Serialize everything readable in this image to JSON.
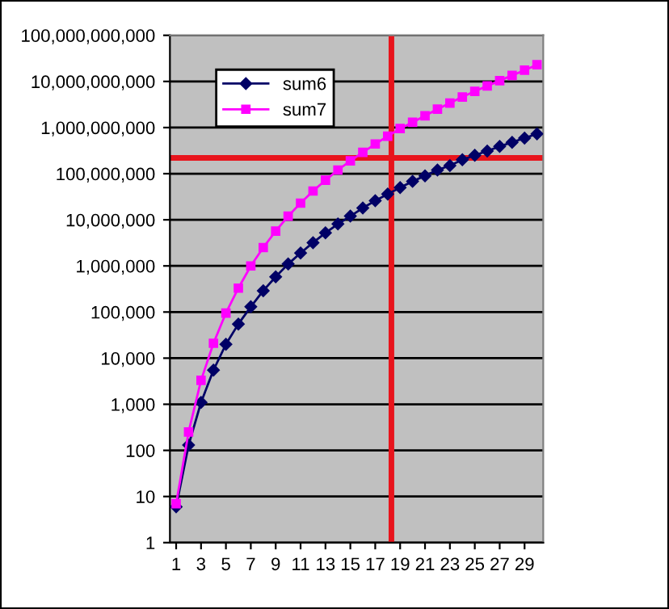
{
  "chart_data": {
    "type": "line",
    "x": [
      1,
      2,
      3,
      4,
      5,
      6,
      7,
      8,
      9,
      10,
      11,
      12,
      13,
      14,
      15,
      16,
      17,
      18,
      19,
      20,
      21,
      22,
      23,
      24,
      25,
      26,
      27,
      28,
      29,
      30
    ],
    "series": [
      {
        "name": "sum6",
        "color": "#000066",
        "marker": "diamond",
        "values": [
          6,
          130,
          1100,
          5500,
          20000,
          55000,
          130000,
          290000,
          580000,
          1100000,
          1900000,
          3200000,
          5200000,
          8100000,
          12000000,
          18000000,
          26000000,
          36000000,
          50000000,
          68000000,
          90000000,
          120000000,
          150000000,
          200000000,
          250000000,
          310000000,
          390000000,
          480000000,
          590000000,
          730000000
        ]
      },
      {
        "name": "sum7",
        "color": "#ff00ff",
        "marker": "square",
        "values": [
          7,
          250,
          3300,
          21000,
          95000,
          330000,
          1000000,
          2500000,
          5700000,
          12000000,
          23000000,
          42000000,
          72000000,
          120000000,
          190000000,
          290000000,
          440000000,
          650000000,
          950000000,
          1300000000,
          1800000000,
          2500000000,
          3400000000,
          4600000000,
          6100000000,
          8000000000,
          10400000000,
          13500000000,
          17500000000,
          23000000000
        ]
      }
    ],
    "log": "y",
    "xlim": [
      0.5,
      30.5
    ],
    "xticks": [
      1,
      3,
      5,
      7,
      9,
      11,
      13,
      15,
      17,
      19,
      21,
      23,
      25,
      27,
      29
    ],
    "ylim": [
      1,
      100000000000
    ],
    "yticks": [
      1,
      10,
      100,
      {
        "value": 1000,
        "label": "1,000"
      },
      {
        "value": 10000,
        "label": "10,000"
      },
      {
        "value": 100000,
        "label": "100,000"
      },
      {
        "value": 1000000,
        "label": "1,000,000"
      },
      {
        "value": 10000000,
        "label": "10,000,000"
      },
      {
        "value": 100000000,
        "label": "100,000,000"
      },
      {
        "value": 1000000000,
        "label": "1,000,000,000"
      },
      {
        "value": 10000000000,
        "label": "10,000,000,000"
      },
      {
        "value": 100000000000,
        "label": "100,000,000,000"
      }
    ],
    "grid": "y",
    "legend": "top left",
    "line_style": "solid",
    "ref_lines": [
      {
        "axis": "x",
        "value": 18.3,
        "label": null,
        "color": "#e8141c"
      },
      {
        "axis": "y",
        "value": 220000000,
        "label": null,
        "color": "#e8141c"
      }
    ]
  }
}
